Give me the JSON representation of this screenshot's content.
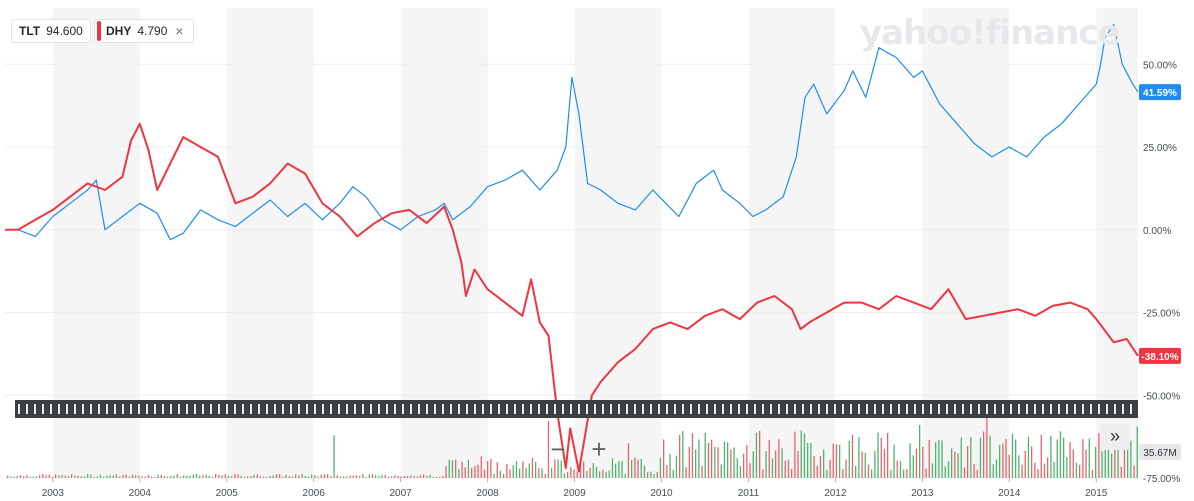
{
  "legend": [
    {
      "symbol": "TLT",
      "value": "94.600",
      "color": "#1f8ded"
    },
    {
      "symbol": "DHY",
      "value": "4.790",
      "color": "#ee3640"
    }
  ],
  "remove_label": "×",
  "watermark": "yahoo!finance",
  "zoom_out_label": "−",
  "zoom_in_label": "+",
  "scroll_label": "»",
  "volume_label": "35.67M",
  "chart_data": {
    "type": "line",
    "yaxis_ticks": [
      "50.00%",
      "25.00%",
      "0.00%",
      "-25.00%",
      "-50.00%",
      "-75.00%"
    ],
    "ylim": [
      -75,
      67
    ],
    "xaxis_ticks": [
      "2003",
      "2004",
      "2005",
      "2006",
      "2007",
      "2008",
      "2009",
      "2010",
      "2011",
      "2012",
      "2013",
      "2014",
      "2015"
    ],
    "xlim": [
      2002.45,
      2015.48
    ],
    "series": [
      {
        "name": "TLT",
        "color": "#1f8ded",
        "last_label": "41.59%",
        "x": [
          2002.45,
          2002.6,
          2002.8,
          2003.0,
          2003.2,
          2003.4,
          2003.5,
          2003.6,
          2003.8,
          2004.0,
          2004.2,
          2004.35,
          2004.5,
          2004.7,
          2004.9,
          2005.1,
          2005.3,
          2005.5,
          2005.7,
          2005.9,
          2006.1,
          2006.3,
          2006.45,
          2006.6,
          2006.8,
          2007.0,
          2007.2,
          2007.4,
          2007.5,
          2007.6,
          2007.8,
          2008.0,
          2008.2,
          2008.4,
          2008.6,
          2008.8,
          2008.9,
          2008.97,
          2009.05,
          2009.15,
          2009.3,
          2009.5,
          2009.7,
          2009.9,
          2010.05,
          2010.2,
          2010.4,
          2010.6,
          2010.7,
          2010.9,
          2011.05,
          2011.2,
          2011.4,
          2011.55,
          2011.65,
          2011.75,
          2011.9,
          2012.1,
          2012.2,
          2012.35,
          2012.5,
          2012.7,
          2012.9,
          2013.0,
          2013.2,
          2013.4,
          2013.6,
          2013.8,
          2014.0,
          2014.2,
          2014.4,
          2014.6,
          2014.8,
          2015.0,
          2015.05,
          2015.1,
          2015.2,
          2015.3,
          2015.42,
          2015.48
        ],
        "y": [
          0,
          0,
          -2,
          4,
          8,
          12,
          15,
          0,
          4,
          8,
          5,
          -3,
          -1,
          6,
          3,
          1,
          5,
          9,
          4,
          8,
          3,
          8,
          13,
          10,
          3,
          0,
          4,
          6,
          8,
          3,
          7,
          13,
          15,
          18,
          12,
          18,
          25,
          46,
          35,
          14,
          12,
          8,
          6,
          12,
          8,
          4,
          14,
          18,
          12,
          8,
          4,
          6,
          10,
          22,
          40,
          44,
          35,
          42,
          48,
          40,
          55,
          52,
          46,
          48,
          38,
          32,
          26,
          22,
          25,
          22,
          28,
          32,
          38,
          44,
          50,
          58,
          62,
          50,
          44,
          41.59
        ]
      },
      {
        "name": "DHY",
        "color": "#ee3640",
        "last_label": "-38.10%",
        "x": [
          2002.45,
          2002.6,
          2002.8,
          2003.0,
          2003.2,
          2003.4,
          2003.6,
          2003.8,
          2003.9,
          2004.0,
          2004.1,
          2004.2,
          2004.35,
          2004.5,
          2004.7,
          2004.9,
          2005.1,
          2005.3,
          2005.5,
          2005.7,
          2005.9,
          2006.1,
          2006.3,
          2006.5,
          2006.7,
          2006.9,
          2007.1,
          2007.3,
          2007.5,
          2007.6,
          2007.7,
          2007.75,
          2007.85,
          2008.0,
          2008.2,
          2008.4,
          2008.5,
          2008.6,
          2008.7,
          2008.8,
          2008.9,
          2008.95,
          2009.05,
          2009.2,
          2009.3,
          2009.5,
          2009.7,
          2009.9,
          2010.1,
          2010.3,
          2010.5,
          2010.7,
          2010.9,
          2011.1,
          2011.3,
          2011.5,
          2011.6,
          2011.7,
          2011.9,
          2012.1,
          2012.3,
          2012.5,
          2012.7,
          2012.9,
          2013.1,
          2013.3,
          2013.5,
          2013.7,
          2013.9,
          2014.1,
          2014.3,
          2014.5,
          2014.7,
          2014.9,
          2015.0,
          2015.2,
          2015.35,
          2015.48
        ],
        "y": [
          0,
          0,
          3,
          6,
          10,
          14,
          12,
          16,
          27,
          32,
          24,
          12,
          20,
          28,
          25,
          22,
          8,
          10,
          14,
          20,
          17,
          8,
          4,
          -2,
          2,
          5,
          6,
          2,
          7,
          0,
          -10,
          -20,
          -12,
          -18,
          -22,
          -26,
          -15,
          -28,
          -32,
          -55,
          -72,
          -60,
          -73,
          -50,
          -46,
          -40,
          -36,
          -30,
          -28,
          -30,
          -26,
          -24,
          -27,
          -22,
          -20,
          -24,
          -30,
          -28,
          -25,
          -22,
          -22,
          -24,
          -20,
          -22,
          -24,
          -18,
          -27,
          -26,
          -25,
          -24,
          -26,
          -23,
          -22,
          -24,
          -27,
          -34,
          -33,
          -38.1
        ]
      }
    ]
  }
}
